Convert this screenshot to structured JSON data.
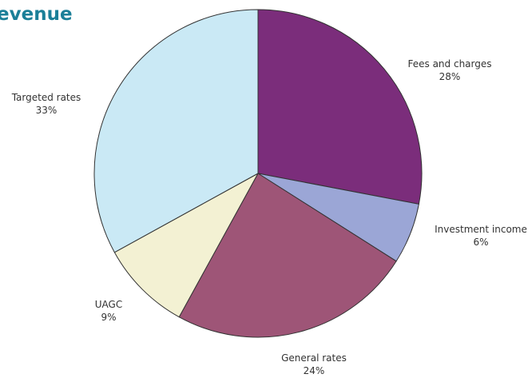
{
  "chart_data": {
    "type": "pie",
    "title": "evenue",
    "start": "top",
    "direction": "clockwise",
    "slices": [
      {
        "label": "Fees and charges",
        "value": 28,
        "value_label": "28%",
        "color": "#7b2d7b"
      },
      {
        "label": "Investment income",
        "value": 6,
        "value_label": "6%",
        "color": "#9ba6d6"
      },
      {
        "label": "General rates",
        "value": 24,
        "value_label": "24%",
        "color": "#9e5577"
      },
      {
        "label": "UAGC",
        "value": 9,
        "value_label": "9%",
        "color": "#f3f1d3"
      },
      {
        "label": "Targeted rates",
        "value": 33,
        "value_label": "33%",
        "color": "#cae9f5"
      }
    ]
  }
}
